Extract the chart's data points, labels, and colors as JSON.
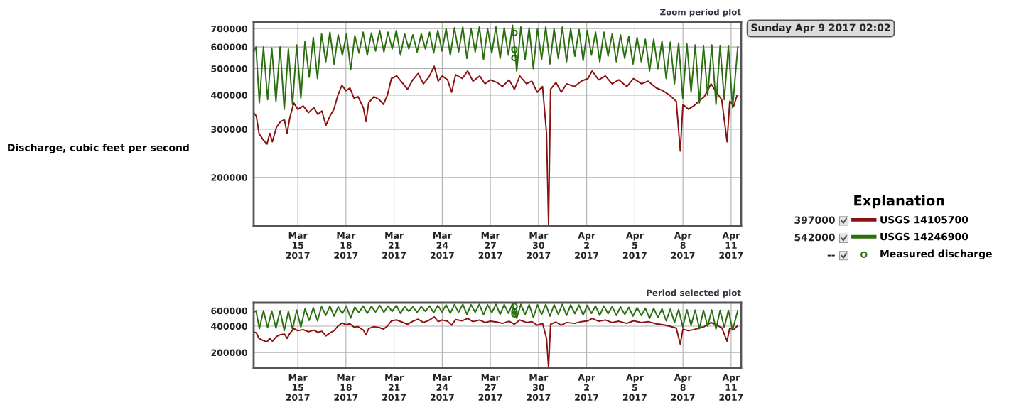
{
  "chart_data": [
    {
      "type": "line",
      "title": "Zoom period plot",
      "ylabel": "Discharge, cubic feet per second",
      "legend_title": "Explanation",
      "legend": "right",
      "log": "y",
      "grid": true,
      "annotations": [
        "Sunday Apr 9 2017 02:02",
        "397000",
        "542000",
        "--"
      ],
      "xlim": [
        "2017-03-12T06:00",
        "2017-04-11T15:00"
      ],
      "xticks": [
        {
          "value": "2017-03-15",
          "label": "Mar\n15\n2017"
        },
        {
          "value": "2017-03-18",
          "label": "Mar\n18\n2017"
        },
        {
          "value": "2017-03-21",
          "label": "Mar\n21\n2017"
        },
        {
          "value": "2017-03-24",
          "label": "Mar\n24\n2017"
        },
        {
          "value": "2017-03-27",
          "label": "Mar\n27\n2017"
        },
        {
          "value": "2017-03-30",
          "label": "Mar\n30\n2017"
        },
        {
          "value": "2017-04-02",
          "label": "Apr\n2\n2017"
        },
        {
          "value": "2017-04-05",
          "label": "Apr\n5\n2017"
        },
        {
          "value": "2017-04-08",
          "label": "Apr\n8\n2017"
        },
        {
          "value": "2017-04-11",
          "label": "Apr\n11\n2017"
        }
      ],
      "ylim": [
        133000,
        740000
      ],
      "yticks": [
        200000,
        300000,
        400000,
        500000,
        600000,
        700000
      ],
      "series": [
        {
          "name": "USGS 14105700",
          "color": "#8b1010",
          "line_style": "solid",
          "x": [
            "2017-03-12T06:00",
            "2017-03-12T10:00",
            "2017-03-12T14:00",
            "2017-03-12T20:00",
            "2017-03-13T02:00",
            "2017-03-13T06:00",
            "2017-03-13T10:00",
            "2017-03-13T16:00",
            "2017-03-13T22:00",
            "2017-03-14T04:00",
            "2017-03-14T08:00",
            "2017-03-14T12:00",
            "2017-03-14T18:00",
            "2017-03-15T00:00",
            "2017-03-15T08:00",
            "2017-03-15T16:00",
            "2017-03-16T00:00",
            "2017-03-16T06:00",
            "2017-03-16T12:00",
            "2017-03-16T18:00",
            "2017-03-17T00:00",
            "2017-03-17T06:00",
            "2017-03-17T12:00",
            "2017-03-17T18:00",
            "2017-03-18T00:00",
            "2017-03-18T06:00",
            "2017-03-18T12:00",
            "2017-03-18T18:00",
            "2017-03-19T02:00",
            "2017-03-19T06:00",
            "2017-03-19T10:00",
            "2017-03-19T18:00",
            "2017-03-20T02:00",
            "2017-03-20T08:00",
            "2017-03-20T14:00",
            "2017-03-20T20:00",
            "2017-03-21T04:00",
            "2017-03-21T12:00",
            "2017-03-21T20:00",
            "2017-03-22T04:00",
            "2017-03-22T12:00",
            "2017-03-22T20:00",
            "2017-03-23T04:00",
            "2017-03-23T12:00",
            "2017-03-23T18:00",
            "2017-03-24T00:00",
            "2017-03-24T08:00",
            "2017-03-24T14:00",
            "2017-03-24T20:00",
            "2017-03-25T06:00",
            "2017-03-25T14:00",
            "2017-03-25T22:00",
            "2017-03-26T08:00",
            "2017-03-26T16:00",
            "2017-03-27T00:00",
            "2017-03-27T10:00",
            "2017-03-27T18:00",
            "2017-03-28T04:00",
            "2017-03-28T12:00",
            "2017-03-28T20:00",
            "2017-03-29T06:00",
            "2017-03-29T14:00",
            "2017-03-29T22:00",
            "2017-03-30T06:00",
            "2017-03-30T12:00",
            "2017-03-30T15:00",
            "2017-03-30T18:00",
            "2017-03-31T02:00",
            "2017-03-31T10:00",
            "2017-03-31T18:00",
            "2017-04-01T06:00",
            "2017-04-01T16:00",
            "2017-04-02T02:00",
            "2017-04-02T08:00",
            "2017-04-02T18:00",
            "2017-04-03T04:00",
            "2017-04-03T14:00",
            "2017-04-04T00:00",
            "2017-04-04T12:00",
            "2017-04-04T22:00",
            "2017-04-05T10:00",
            "2017-04-05T20:00",
            "2017-04-06T08:00",
            "2017-04-06T18:00",
            "2017-04-07T04:00",
            "2017-04-07T14:00",
            "2017-04-07T20:00",
            "2017-04-08T00:00",
            "2017-04-08T08:00",
            "2017-04-08T16:00",
            "2017-04-09T00:00",
            "2017-04-09T08:00",
            "2017-04-09T18:00",
            "2017-04-10T02:00",
            "2017-04-10T10:00",
            "2017-04-10T18:00",
            "2017-04-10T22:00",
            "2017-04-11T04:00",
            "2017-04-11T09:00"
          ],
          "values": [
            345000,
            335000,
            290000,
            275000,
            265000,
            290000,
            270000,
            305000,
            320000,
            325000,
            290000,
            330000,
            375000,
            355000,
            365000,
            345000,
            360000,
            340000,
            350000,
            310000,
            335000,
            355000,
            400000,
            435000,
            415000,
            425000,
            390000,
            395000,
            360000,
            320000,
            375000,
            395000,
            385000,
            370000,
            400000,
            460000,
            470000,
            445000,
            420000,
            455000,
            480000,
            440000,
            465000,
            510000,
            450000,
            470000,
            455000,
            410000,
            475000,
            460000,
            490000,
            450000,
            470000,
            440000,
            455000,
            445000,
            430000,
            455000,
            420000,
            470000,
            440000,
            450000,
            410000,
            430000,
            290000,
            135000,
            420000,
            445000,
            410000,
            440000,
            430000,
            450000,
            460000,
            490000,
            455000,
            470000,
            440000,
            455000,
            430000,
            460000,
            440000,
            450000,
            425000,
            415000,
            400000,
            380000,
            250000,
            370000,
            355000,
            365000,
            380000,
            395000,
            440000,
            410000,
            385000,
            270000,
            380000,
            365000,
            400000
          ]
        },
        {
          "name": "USGS 14246900",
          "color": "#2a6e10",
          "line_style": "solid",
          "x": [
            "2017-03-12T06:00",
            "2017-03-12T09:30",
            "2017-03-12T14:30",
            "2017-03-12T20:40",
            "2017-03-13T02:55",
            "2017-03-13T09:05",
            "2017-03-13T15:20",
            "2017-03-13T21:30",
            "2017-03-14T03:45",
            "2017-03-14T09:55",
            "2017-03-14T16:10",
            "2017-03-14T22:20",
            "2017-03-15T04:35",
            "2017-03-15T10:45",
            "2017-03-15T17:00",
            "2017-03-15T23:10",
            "2017-03-16T05:25",
            "2017-03-16T11:35",
            "2017-03-16T17:50",
            "2017-03-17T00:00",
            "2017-03-17T06:15",
            "2017-03-17T12:25",
            "2017-03-17T18:40",
            "2017-03-18T00:50",
            "2017-03-18T07:05",
            "2017-03-18T13:15",
            "2017-03-18T19:30",
            "2017-03-19T01:40",
            "2017-03-19T07:55",
            "2017-03-19T14:05",
            "2017-03-19T20:20",
            "2017-03-20T02:30",
            "2017-03-20T08:45",
            "2017-03-20T14:55",
            "2017-03-20T21:10",
            "2017-03-21T03:20",
            "2017-03-21T09:35",
            "2017-03-21T15:45",
            "2017-03-21T22:00",
            "2017-03-22T04:10",
            "2017-03-22T10:25",
            "2017-03-22T16:35",
            "2017-03-22T22:50",
            "2017-03-23T05:00",
            "2017-03-23T11:15",
            "2017-03-23T17:25",
            "2017-03-23T23:40",
            "2017-03-24T05:50",
            "2017-03-24T12:05",
            "2017-03-24T18:15",
            "2017-03-25T00:30",
            "2017-03-25T06:40",
            "2017-03-25T12:55",
            "2017-03-25T19:05",
            "2017-03-26T01:20",
            "2017-03-26T07:30",
            "2017-03-26T13:45",
            "2017-03-26T19:55",
            "2017-03-27T02:10",
            "2017-03-27T08:20",
            "2017-03-27T14:35",
            "2017-03-27T20:45",
            "2017-03-28T03:00",
            "2017-03-28T09:10",
            "2017-03-28T15:25",
            "2017-03-28T21:35",
            "2017-03-29T03:50",
            "2017-03-29T10:00",
            "2017-03-29T16:15",
            "2017-03-29T22:25",
            "2017-03-30T04:40",
            "2017-03-30T10:50",
            "2017-03-30T17:05",
            "2017-03-30T23:15",
            "2017-03-31T05:30",
            "2017-03-31T11:40",
            "2017-03-31T17:55",
            "2017-04-01T00:05",
            "2017-04-01T06:20",
            "2017-04-01T12:30",
            "2017-04-01T18:45",
            "2017-04-02T00:55",
            "2017-04-02T07:10",
            "2017-04-02T13:20",
            "2017-04-02T19:35",
            "2017-04-03T01:45",
            "2017-04-03T08:00",
            "2017-04-03T14:10",
            "2017-04-03T20:25",
            "2017-04-04T02:35",
            "2017-04-04T08:50",
            "2017-04-04T15:00",
            "2017-04-04T21:15",
            "2017-04-05T03:25",
            "2017-04-05T09:40",
            "2017-04-05T15:50",
            "2017-04-05T22:05",
            "2017-04-06T04:15",
            "2017-04-06T10:30",
            "2017-04-06T16:40",
            "2017-04-06T22:55",
            "2017-04-07T05:05",
            "2017-04-07T11:20",
            "2017-04-07T17:30",
            "2017-04-07T23:45",
            "2017-04-08T05:55",
            "2017-04-08T12:10",
            "2017-04-08T18:20",
            "2017-04-09T00:35",
            "2017-04-09T06:45",
            "2017-04-09T13:00",
            "2017-04-09T19:10",
            "2017-04-10T01:25",
            "2017-04-10T07:35",
            "2017-04-10T13:50",
            "2017-04-10T20:00",
            "2017-04-11T02:15",
            "2017-04-11T10:00"
          ],
          "values": [
            575000,
            600000,
            375000,
            600000,
            385000,
            595000,
            380000,
            600000,
            355000,
            590000,
            370000,
            610000,
            390000,
            630000,
            465000,
            650000,
            460000,
            670000,
            530000,
            680000,
            520000,
            665000,
            560000,
            670000,
            495000,
            660000,
            570000,
            680000,
            560000,
            675000,
            580000,
            690000,
            575000,
            680000,
            590000,
            690000,
            560000,
            670000,
            590000,
            665000,
            575000,
            670000,
            590000,
            680000,
            570000,
            690000,
            580000,
            700000,
            560000,
            705000,
            575000,
            710000,
            545000,
            700000,
            575000,
            710000,
            540000,
            700000,
            570000,
            710000,
            545000,
            705000,
            560000,
            720000,
            490000,
            710000,
            540000,
            705000,
            500000,
            700000,
            540000,
            710000,
            520000,
            700000,
            545000,
            710000,
            530000,
            700000,
            555000,
            695000,
            535000,
            690000,
            560000,
            680000,
            530000,
            680000,
            555000,
            670000,
            530000,
            665000,
            545000,
            655000,
            520000,
            650000,
            530000,
            640000,
            490000,
            640000,
            500000,
            630000,
            460000,
            625000,
            440000,
            620000,
            390000,
            615000,
            410000,
            610000,
            375000,
            605000,
            400000,
            610000,
            370000,
            605000,
            385000,
            605000,
            360000,
            600000
          ]
        },
        {
          "name": "Measured discharge",
          "color": "#2a6e10",
          "type": "scatter",
          "marker": "circle",
          "x": [
            "2017-03-28T12:00",
            "2017-03-28T12:00",
            "2017-03-28T12:00"
          ],
          "values": [
            675000,
            586000,
            547000
          ]
        }
      ]
    },
    {
      "type": "line",
      "title": "Period selected plot",
      "log": "y",
      "grid": true,
      "xlim": [
        "2017-03-12T06:00",
        "2017-04-11T15:00"
      ],
      "xticks": [
        {
          "value": "2017-03-15",
          "label": "Mar\n15\n2017"
        },
        {
          "value": "2017-03-18",
          "label": "Mar\n18\n2017"
        },
        {
          "value": "2017-03-21",
          "label": "Mar\n21\n2017"
        },
        {
          "value": "2017-03-24",
          "label": "Mar\n24\n2017"
        },
        {
          "value": "2017-03-27",
          "label": "Mar\n27\n2017"
        },
        {
          "value": "2017-03-30",
          "label": "Mar\n30\n2017"
        },
        {
          "value": "2017-04-02",
          "label": "Apr\n2\n2017"
        },
        {
          "value": "2017-04-05",
          "label": "Apr\n5\n2017"
        },
        {
          "value": "2017-04-08",
          "label": "Apr\n8\n2017"
        },
        {
          "value": "2017-04-11",
          "label": "Apr\n11\n2017"
        }
      ],
      "ylim": [
        133000,
        740000
      ],
      "yticks": [
        200000,
        400000,
        600000
      ],
      "series": [
        {
          "color": "#8b1010",
          "line_style": "solid",
          "x": [
            "2017-03-12T06:00",
            "2017-03-12T10:00",
            "2017-03-12T14:00",
            "2017-03-12T20:00",
            "2017-03-13T02:00",
            "2017-03-13T06:00",
            "2017-03-13T10:00",
            "2017-03-13T16:00",
            "2017-03-13T22:00",
            "2017-03-14T04:00",
            "2017-03-14T08:00",
            "2017-03-14T12:00",
            "2017-03-14T18:00",
            "2017-03-15T00:00",
            "2017-03-15T08:00",
            "2017-03-15T16:00",
            "2017-03-16T00:00",
            "2017-03-16T06:00",
            "2017-03-16T12:00",
            "2017-03-16T18:00",
            "2017-03-17T00:00",
            "2017-03-17T06:00",
            "2017-03-17T12:00",
            "2017-03-17T18:00",
            "2017-03-18T00:00",
            "2017-03-18T06:00",
            "2017-03-18T12:00",
            "2017-03-18T18:00",
            "2017-03-19T02:00",
            "2017-03-19T06:00",
            "2017-03-19T10:00",
            "2017-03-19T18:00",
            "2017-03-20T02:00",
            "2017-03-20T08:00",
            "2017-03-20T14:00",
            "2017-03-20T20:00",
            "2017-03-21T04:00",
            "2017-03-21T12:00",
            "2017-03-21T20:00",
            "2017-03-22T04:00",
            "2017-03-22T12:00",
            "2017-03-22T20:00",
            "2017-03-23T04:00",
            "2017-03-23T12:00",
            "2017-03-23T18:00",
            "2017-03-24T00:00",
            "2017-03-24T08:00",
            "2017-03-24T14:00",
            "2017-03-24T20:00",
            "2017-03-25T06:00",
            "2017-03-25T14:00",
            "2017-03-25T22:00",
            "2017-03-26T08:00",
            "2017-03-26T16:00",
            "2017-03-27T00:00",
            "2017-03-27T10:00",
            "2017-03-27T18:00",
            "2017-03-28T04:00",
            "2017-03-28T12:00",
            "2017-03-28T20:00",
            "2017-03-29T06:00",
            "2017-03-29T14:00",
            "2017-03-29T22:00",
            "2017-03-30T06:00",
            "2017-03-30T12:00",
            "2017-03-30T15:00",
            "2017-03-30T18:00",
            "2017-03-31T02:00",
            "2017-03-31T10:00",
            "2017-03-31T18:00",
            "2017-04-01T06:00",
            "2017-04-01T16:00",
            "2017-04-02T02:00",
            "2017-04-02T08:00",
            "2017-04-02T18:00",
            "2017-04-03T04:00",
            "2017-04-03T14:00",
            "2017-04-04T00:00",
            "2017-04-04T12:00",
            "2017-04-04T22:00",
            "2017-04-05T10:00",
            "2017-04-05T20:00",
            "2017-04-06T08:00",
            "2017-04-06T18:00",
            "2017-04-07T04:00",
            "2017-04-07T14:00",
            "2017-04-07T20:00",
            "2017-04-08T00:00",
            "2017-04-08T08:00",
            "2017-04-08T16:00",
            "2017-04-09T00:00",
            "2017-04-09T08:00",
            "2017-04-09T18:00",
            "2017-04-10T02:00",
            "2017-04-10T10:00",
            "2017-04-10T18:00",
            "2017-04-10T22:00",
            "2017-04-11T04:00",
            "2017-04-11T09:00"
          ],
          "values": [
            345000,
            335000,
            290000,
            275000,
            265000,
            290000,
            270000,
            305000,
            320000,
            325000,
            290000,
            330000,
            375000,
            355000,
            365000,
            345000,
            360000,
            340000,
            350000,
            310000,
            335000,
            355000,
            400000,
            435000,
            415000,
            425000,
            390000,
            395000,
            360000,
            320000,
            375000,
            395000,
            385000,
            370000,
            400000,
            460000,
            470000,
            445000,
            420000,
            455000,
            480000,
            440000,
            465000,
            510000,
            450000,
            470000,
            455000,
            410000,
            475000,
            460000,
            490000,
            450000,
            470000,
            440000,
            455000,
            445000,
            430000,
            455000,
            420000,
            470000,
            440000,
            450000,
            410000,
            430000,
            290000,
            135000,
            420000,
            445000,
            410000,
            440000,
            430000,
            450000,
            460000,
            490000,
            455000,
            470000,
            440000,
            455000,
            430000,
            460000,
            440000,
            450000,
            425000,
            415000,
            400000,
            380000,
            250000,
            370000,
            355000,
            365000,
            380000,
            395000,
            440000,
            410000,
            385000,
            270000,
            380000,
            365000,
            400000
          ]
        },
        {
          "color": "#2a6e10",
          "line_style": "solid",
          "x": [
            "2017-03-12T06:00",
            "2017-03-12T09:30",
            "2017-03-12T14:30",
            "2017-03-12T20:40",
            "2017-03-13T02:55",
            "2017-03-13T09:05",
            "2017-03-13T15:20",
            "2017-03-13T21:30",
            "2017-03-14T03:45",
            "2017-03-14T09:55",
            "2017-03-14T16:10",
            "2017-03-14T22:20",
            "2017-03-15T04:35",
            "2017-03-15T10:45",
            "2017-03-15T17:00",
            "2017-03-15T23:10",
            "2017-03-16T05:25",
            "2017-03-16T11:35",
            "2017-03-16T17:50",
            "2017-03-17T00:00",
            "2017-03-17T06:15",
            "2017-03-17T12:25",
            "2017-03-17T18:40",
            "2017-03-18T00:50",
            "2017-03-18T07:05",
            "2017-03-18T13:15",
            "2017-03-18T19:30",
            "2017-03-19T01:40",
            "2017-03-19T07:55",
            "2017-03-19T14:05",
            "2017-03-19T20:20",
            "2017-03-20T02:30",
            "2017-03-20T08:45",
            "2017-03-20T14:55",
            "2017-03-20T21:10",
            "2017-03-21T03:20",
            "2017-03-21T09:35",
            "2017-03-21T15:45",
            "2017-03-21T22:00",
            "2017-03-22T04:10",
            "2017-03-22T10:25",
            "2017-03-22T16:35",
            "2017-03-22T22:50",
            "2017-03-23T05:00",
            "2017-03-23T11:15",
            "2017-03-23T17:25",
            "2017-03-23T23:40",
            "2017-03-24T05:50",
            "2017-03-24T12:05",
            "2017-03-24T18:15",
            "2017-03-25T00:30",
            "2017-03-25T06:40",
            "2017-03-25T12:55",
            "2017-03-25T19:05",
            "2017-03-26T01:20",
            "2017-03-26T07:30",
            "2017-03-26T13:45",
            "2017-03-26T19:55",
            "2017-03-27T02:10",
            "2017-03-27T08:20",
            "2017-03-27T14:35",
            "2017-03-27T20:45",
            "2017-03-28T03:00",
            "2017-03-28T09:10",
            "2017-03-28T15:25",
            "2017-03-28T21:35",
            "2017-03-29T03:50",
            "2017-03-29T10:00",
            "2017-03-29T16:15",
            "2017-03-29T22:25",
            "2017-03-30T04:40",
            "2017-03-30T10:50",
            "2017-03-30T17:05",
            "2017-03-30T23:15",
            "2017-03-31T05:30",
            "2017-03-31T11:40",
            "2017-03-31T17:55",
            "2017-04-01T00:05",
            "2017-04-01T06:20",
            "2017-04-01T12:30",
            "2017-04-01T18:45",
            "2017-04-02T00:55",
            "2017-04-02T07:10",
            "2017-04-02T13:20",
            "2017-04-02T19:35",
            "2017-04-03T01:45",
            "2017-04-03T08:00",
            "2017-04-03T14:10",
            "2017-04-03T20:25",
            "2017-04-04T02:35",
            "2017-04-04T08:50",
            "2017-04-04T15:00",
            "2017-04-04T21:15",
            "2017-04-05T03:25",
            "2017-04-05T09:40",
            "2017-04-05T15:50",
            "2017-04-05T22:05",
            "2017-04-06T04:15",
            "2017-04-06T10:30",
            "2017-04-06T16:40",
            "2017-04-06T22:55",
            "2017-04-07T05:05",
            "2017-04-07T11:20",
            "2017-04-07T17:30",
            "2017-04-07T23:45",
            "2017-04-08T05:55",
            "2017-04-08T12:10",
            "2017-04-08T18:20",
            "2017-04-09T00:35",
            "2017-04-09T06:45",
            "2017-04-09T13:00",
            "2017-04-09T19:10",
            "2017-04-10T01:25",
            "2017-04-10T07:35",
            "2017-04-10T13:50",
            "2017-04-10T20:00",
            "2017-04-11T02:15",
            "2017-04-11T10:00"
          ],
          "values": [
            575000,
            600000,
            375000,
            600000,
            385000,
            595000,
            380000,
            600000,
            355000,
            590000,
            370000,
            610000,
            390000,
            630000,
            465000,
            650000,
            460000,
            670000,
            530000,
            680000,
            520000,
            665000,
            560000,
            670000,
            495000,
            660000,
            570000,
            680000,
            560000,
            675000,
            580000,
            690000,
            575000,
            680000,
            590000,
            690000,
            560000,
            670000,
            590000,
            665000,
            575000,
            670000,
            590000,
            680000,
            570000,
            690000,
            580000,
            700000,
            560000,
            705000,
            575000,
            710000,
            545000,
            700000,
            575000,
            710000,
            540000,
            700000,
            570000,
            710000,
            545000,
            705000,
            560000,
            720000,
            490000,
            710000,
            540000,
            705000,
            500000,
            700000,
            540000,
            710000,
            520000,
            700000,
            545000,
            710000,
            530000,
            700000,
            555000,
            695000,
            535000,
            690000,
            560000,
            680000,
            530000,
            680000,
            555000,
            670000,
            530000,
            665000,
            545000,
            655000,
            520000,
            650000,
            530000,
            640000,
            490000,
            640000,
            500000,
            630000,
            460000,
            625000,
            440000,
            620000,
            390000,
            615000,
            410000,
            610000,
            375000,
            605000,
            400000,
            610000,
            370000,
            605000,
            385000,
            605000,
            360000,
            600000
          ]
        },
        {
          "color": "#2a6e10",
          "type": "scatter",
          "marker": "circle",
          "x": [
            "2017-03-28T12:00",
            "2017-03-28T12:00",
            "2017-03-28T12:00"
          ],
          "values": [
            675000,
            586000,
            547000
          ]
        }
      ]
    }
  ]
}
